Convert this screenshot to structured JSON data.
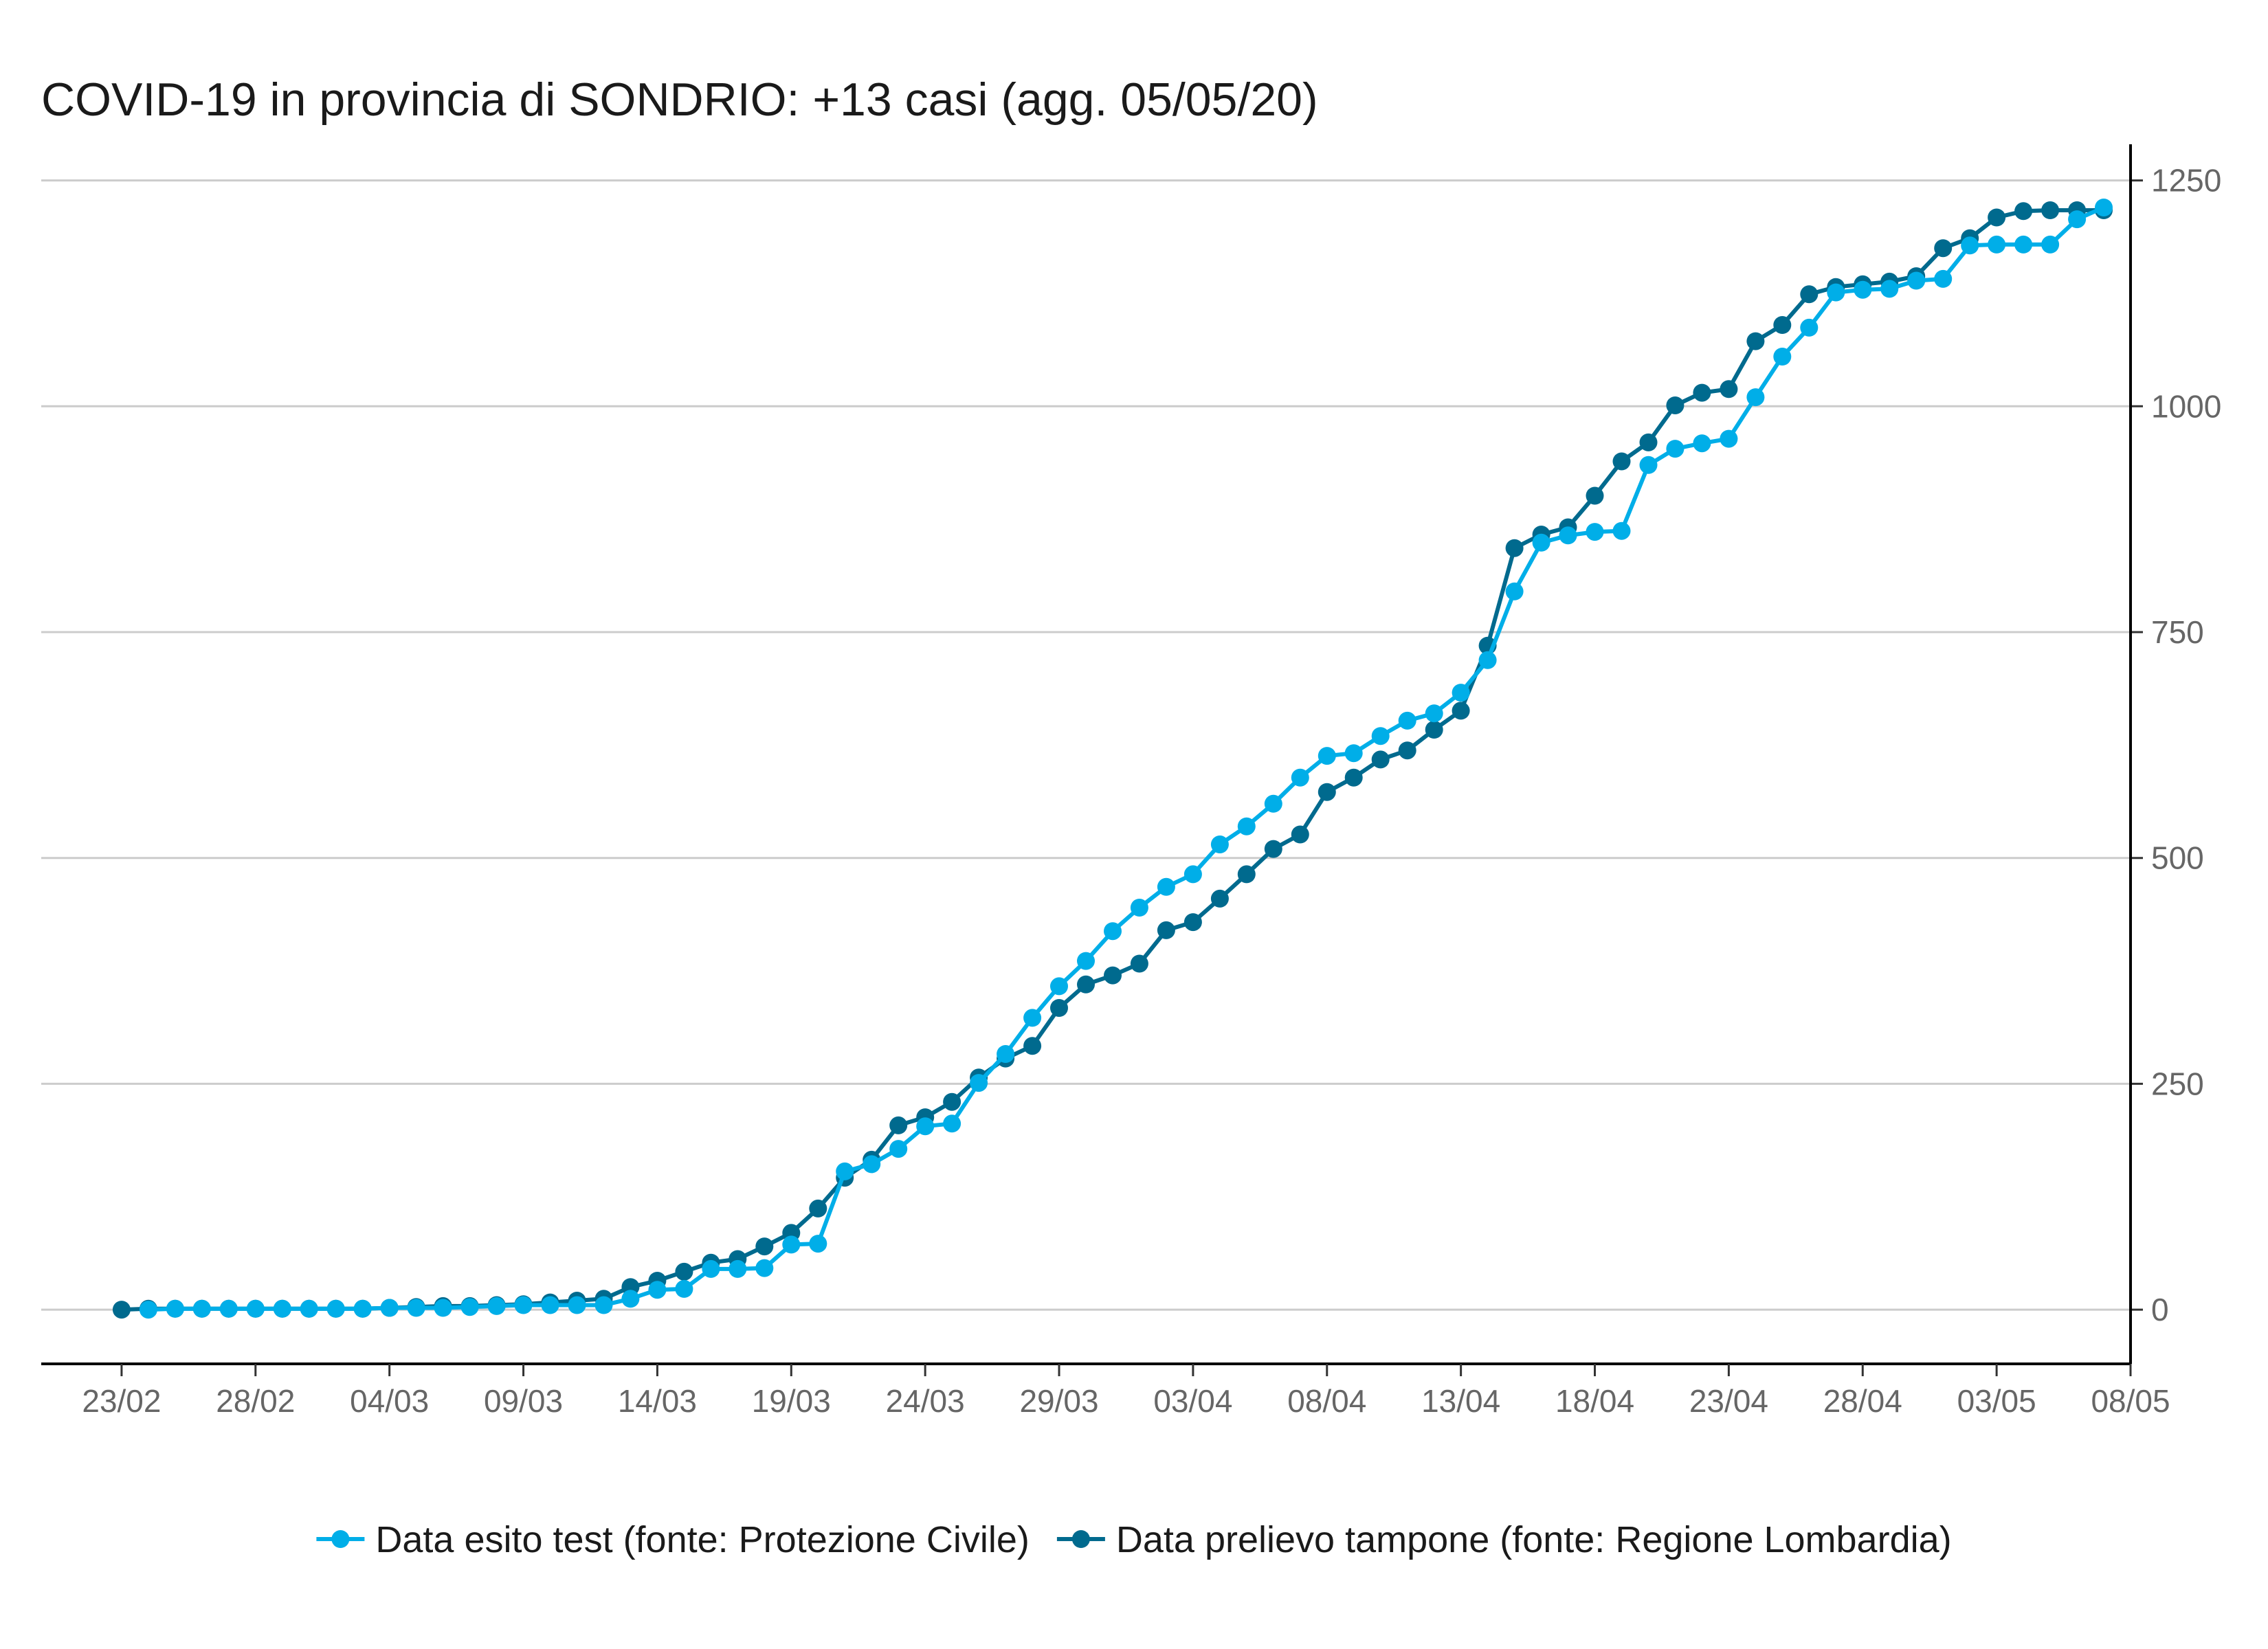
{
  "chart_data": {
    "type": "line",
    "title": "COVID-19 in provincia di SONDRIO: +13 casi (agg. 05/05/20)",
    "xlabel": "",
    "ylabel": "",
    "x_range": [
      "2020-02-20",
      "2020-05-08"
    ],
    "ylim": [
      -60,
      1290
    ],
    "y_ticks": [
      0,
      250,
      500,
      750,
      1000,
      1250
    ],
    "x_ticks": [
      {
        "date": "2020-02-23",
        "label": "23/02"
      },
      {
        "date": "2020-02-28",
        "label": "28/02"
      },
      {
        "date": "2020-03-04",
        "label": "04/03"
      },
      {
        "date": "2020-03-09",
        "label": "09/03"
      },
      {
        "date": "2020-03-14",
        "label": "14/03"
      },
      {
        "date": "2020-03-19",
        "label": "19/03"
      },
      {
        "date": "2020-03-24",
        "label": "24/03"
      },
      {
        "date": "2020-03-29",
        "label": "29/03"
      },
      {
        "date": "2020-04-03",
        "label": "03/04"
      },
      {
        "date": "2020-04-08",
        "label": "08/04"
      },
      {
        "date": "2020-04-13",
        "label": "13/04"
      },
      {
        "date": "2020-04-18",
        "label": "18/04"
      },
      {
        "date": "2020-04-23",
        "label": "23/04"
      },
      {
        "date": "2020-04-28",
        "label": "28/04"
      },
      {
        "date": "2020-05-03",
        "label": "03/05"
      },
      {
        "date": "2020-05-08",
        "label": "08/05"
      }
    ],
    "grid": true,
    "y_axis_side": "right",
    "legend_position": "bottom",
    "series": [
      {
        "name": "Data esito test (fonte: Protezione Civile)",
        "color": "#00aee8",
        "start_date": "2020-02-24",
        "values": [
          0,
          1,
          1,
          1,
          1,
          1,
          1,
          1,
          1,
          2,
          2,
          2,
          3,
          4,
          5,
          5,
          5,
          5,
          12,
          22,
          23,
          45,
          45,
          46,
          72,
          73,
          153,
          161,
          178,
          203,
          206,
          251,
          283,
          323,
          358,
          386,
          419,
          445,
          468,
          482,
          515,
          535,
          560,
          589,
          613,
          616,
          635,
          652,
          660,
          683,
          719,
          795,
          849,
          857,
          861,
          862,
          935,
          953,
          959,
          964,
          1010,
          1055,
          1087,
          1126,
          1129,
          1130,
          1139,
          1141,
          1178,
          1179,
          1179,
          1179,
          1207,
          1220
        ]
      },
      {
        "name": "Data prelievo tampone (fonte: Regione Lombardia)",
        "color": "#006a8e",
        "start_date": "2020-02-23",
        "values": [
          0,
          1,
          1,
          1,
          1,
          1,
          1,
          1,
          1,
          1,
          2,
          3,
          4,
          4,
          5,
          6,
          8,
          10,
          12,
          25,
          32,
          42,
          52,
          56,
          70,
          85,
          112,
          146,
          166,
          204,
          213,
          230,
          257,
          278,
          292,
          334,
          360,
          370,
          383,
          420,
          429,
          455,
          482,
          510,
          526,
          573,
          589,
          609,
          619,
          642,
          663,
          735,
          843,
          858,
          866,
          901,
          939,
          960,
          1001,
          1015,
          1019,
          1072,
          1090,
          1124,
          1132,
          1135,
          1138,
          1144,
          1175,
          1186,
          1209,
          1216,
          1217,
          1217,
          1217
        ]
      }
    ]
  }
}
